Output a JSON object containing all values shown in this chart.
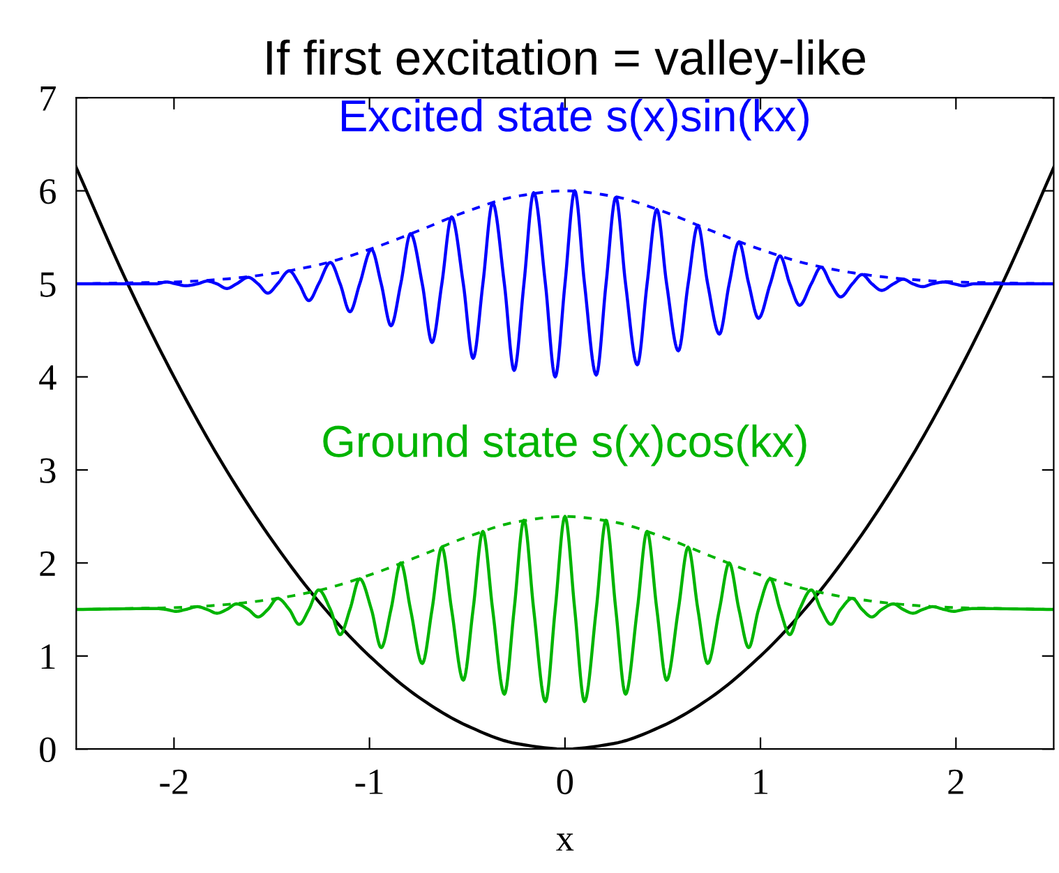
{
  "chart_data": {
    "type": "line",
    "title": "If first excitation = valley-like",
    "xlabel": "x",
    "xlim": [
      -2.5,
      2.5
    ],
    "ylim": [
      0,
      7
    ],
    "xticks": [
      -2,
      -1,
      0,
      1,
      2
    ],
    "yticks": [
      0,
      1,
      2,
      3,
      4,
      5,
      6,
      7
    ],
    "grid": false,
    "legend": false,
    "marker": "none",
    "series": [
      {
        "color": "#000000",
        "line_style": "solid",
        "x": [
          -2.5,
          -2.25,
          -2,
          -1.75,
          -1.5,
          -1.25,
          -1,
          -0.75,
          -0.5,
          -0.25,
          0,
          0.25,
          0.5,
          0.75,
          1,
          1.25,
          1.5,
          1.75,
          2,
          2.25,
          2.5
        ],
        "values": [
          6.25,
          5.06,
          4,
          3.06,
          2.25,
          1.56,
          1,
          0.56,
          0.25,
          0.06,
          0,
          0.06,
          0.25,
          0.56,
          1,
          1.56,
          2.25,
          3.06,
          4,
          5.06,
          6.25
        ]
      },
      {
        "color": "#0000ff",
        "line_style": "dashed",
        "x": [
          -2.5,
          -2.25,
          -2,
          -1.75,
          -1.5,
          -1.25,
          -1,
          -0.75,
          -0.5,
          -0.25,
          0,
          0.25,
          0.5,
          0.75,
          1,
          1.25,
          1.5,
          1.75,
          2,
          2.25,
          2.5
        ],
        "values": [
          5.0,
          5.01,
          5.02,
          5.05,
          5.11,
          5.21,
          5.37,
          5.57,
          5.78,
          5.94,
          6.0,
          5.94,
          5.78,
          5.57,
          5.37,
          5.21,
          5.11,
          5.05,
          5.02,
          5.01,
          5.0
        ]
      },
      {
        "color": "#00b400",
        "line_style": "dashed",
        "x": [
          -2.5,
          -2.25,
          -2,
          -1.75,
          -1.5,
          -1.25,
          -1,
          -0.75,
          -0.5,
          -0.25,
          0,
          0.25,
          0.5,
          0.75,
          1,
          1.25,
          1.5,
          1.75,
          2,
          2.25,
          2.5
        ],
        "values": [
          1.5,
          1.51,
          1.52,
          1.55,
          1.61,
          1.71,
          1.87,
          2.07,
          2.28,
          2.44,
          2.5,
          2.44,
          2.28,
          2.07,
          1.87,
          1.71,
          1.61,
          1.55,
          1.52,
          1.51,
          1.5
        ]
      },
      {
        "name": "Excited state s(x)sin(kx)",
        "color": "#0000ff",
        "line_style": "solid",
        "x": [
          -2.5,
          -2.09,
          -2.04,
          -1.99,
          -1.94,
          -1.88,
          -1.83,
          -1.78,
          -1.73,
          -1.68,
          -1.62,
          -1.57,
          -1.52,
          -1.47,
          -1.41,
          -1.36,
          -1.31,
          -1.26,
          -1.2,
          -1.15,
          -1.1,
          -1.05,
          -0.99,
          -0.94,
          -0.89,
          -0.84,
          -0.79,
          -0.73,
          -0.68,
          -0.63,
          -0.58,
          -0.52,
          -0.47,
          -0.42,
          -0.37,
          -0.31,
          -0.26,
          -0.21,
          -0.16,
          -0.1,
          -0.05,
          0,
          0.05,
          0.1,
          0.16,
          0.21,
          0.26,
          0.31,
          0.37,
          0.42,
          0.47,
          0.52,
          0.58,
          0.63,
          0.68,
          0.73,
          0.79,
          0.84,
          0.89,
          0.94,
          0.99,
          1.05,
          1.1,
          1.15,
          1.2,
          1.26,
          1.31,
          1.36,
          1.41,
          1.47,
          1.52,
          1.57,
          1.62,
          1.68,
          1.73,
          1.78,
          1.83,
          1.88,
          1.94,
          1.99,
          2.04,
          2.09,
          2.5
        ],
        "values": [
          5.0,
          5.0,
          5.02,
          5.0,
          4.98,
          5.0,
          5.03,
          5.0,
          4.95,
          5.0,
          5.07,
          5.0,
          4.9,
          5.0,
          5.14,
          5.0,
          4.82,
          5.0,
          5.23,
          5.0,
          4.7,
          5.0,
          5.37,
          5.0,
          4.55,
          5.0,
          5.54,
          5.0,
          4.37,
          5.0,
          5.72,
          5.0,
          4.2,
          5.0,
          5.87,
          5.0,
          4.07,
          5.0,
          5.98,
          5.0,
          4.0,
          5.0,
          6.0,
          5.0,
          4.02,
          5.0,
          5.93,
          5.0,
          4.13,
          5.0,
          5.8,
          5.0,
          4.28,
          5.0,
          5.63,
          5.0,
          4.46,
          5.0,
          5.45,
          5.0,
          4.63,
          5.0,
          5.3,
          5.0,
          4.77,
          5.0,
          5.18,
          5.0,
          4.86,
          5.0,
          5.1,
          5.0,
          4.93,
          5.0,
          5.05,
          5.0,
          4.97,
          5.0,
          5.02,
          5.0,
          4.98,
          5.0,
          5.0
        ]
      },
      {
        "name": "Ground state s(x)cos(kx)",
        "color": "#00b400",
        "line_style": "solid",
        "x": [
          -2.5,
          -2.09,
          -2.04,
          -1.99,
          -1.94,
          -1.88,
          -1.83,
          -1.78,
          -1.73,
          -1.68,
          -1.62,
          -1.57,
          -1.52,
          -1.47,
          -1.41,
          -1.36,
          -1.31,
          -1.26,
          -1.2,
          -1.15,
          -1.1,
          -1.05,
          -0.99,
          -0.94,
          -0.89,
          -0.84,
          -0.79,
          -0.73,
          -0.68,
          -0.63,
          -0.58,
          -0.52,
          -0.47,
          -0.42,
          -0.37,
          -0.31,
          -0.26,
          -0.21,
          -0.16,
          -0.1,
          -0.05,
          0,
          0.05,
          0.1,
          0.16,
          0.21,
          0.26,
          0.31,
          0.37,
          0.42,
          0.47,
          0.52,
          0.58,
          0.63,
          0.68,
          0.73,
          0.79,
          0.84,
          0.89,
          0.94,
          0.99,
          1.05,
          1.1,
          1.15,
          1.2,
          1.26,
          1.31,
          1.36,
          1.41,
          1.47,
          1.52,
          1.57,
          1.62,
          1.68,
          1.73,
          1.78,
          1.83,
          1.88,
          1.94,
          1.99,
          2.04,
          2.09,
          2.5
        ],
        "values": [
          1.5,
          1.51,
          1.5,
          1.48,
          1.5,
          1.53,
          1.5,
          1.46,
          1.5,
          1.56,
          1.5,
          1.42,
          1.5,
          1.62,
          1.5,
          1.34,
          1.5,
          1.71,
          1.5,
          1.23,
          1.5,
          1.83,
          1.5,
          1.09,
          1.5,
          2.0,
          1.5,
          0.92,
          1.5,
          2.17,
          1.5,
          0.74,
          1.5,
          2.34,
          1.5,
          0.59,
          1.5,
          2.46,
          1.5,
          0.51,
          1.5,
          2.5,
          1.5,
          0.51,
          1.5,
          2.46,
          1.5,
          0.59,
          1.5,
          2.34,
          1.5,
          0.74,
          1.5,
          2.17,
          1.5,
          0.92,
          1.5,
          2.0,
          1.5,
          1.09,
          1.5,
          1.83,
          1.5,
          1.23,
          1.5,
          1.71,
          1.5,
          1.34,
          1.5,
          1.62,
          1.5,
          1.42,
          1.5,
          1.56,
          1.5,
          1.46,
          1.5,
          1.53,
          1.5,
          1.48,
          1.5,
          1.51,
          1.5
        ]
      }
    ]
  }
}
